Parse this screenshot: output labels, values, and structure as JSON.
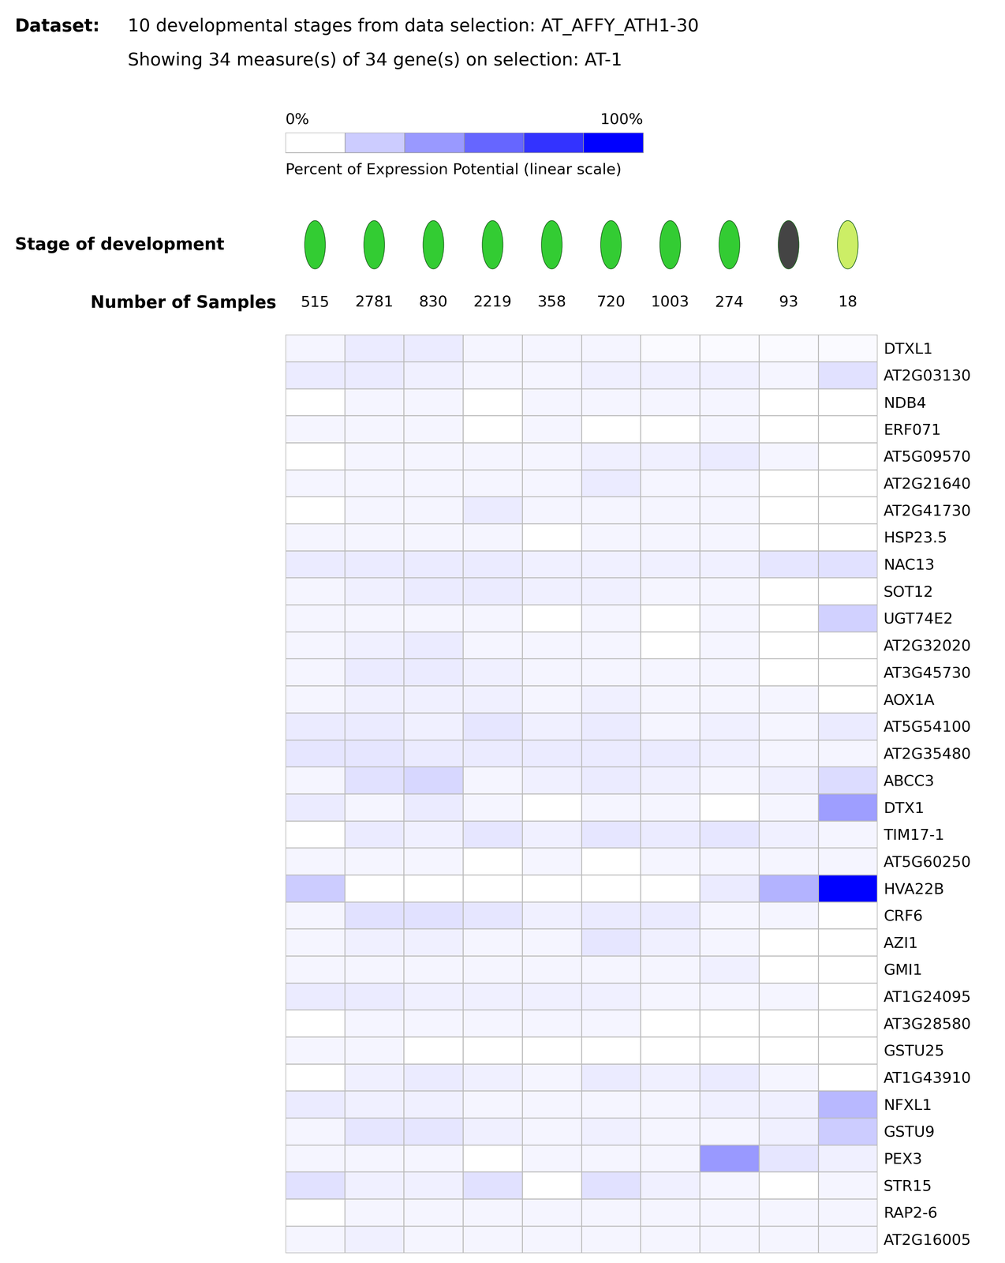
{
  "chart_data": {
    "type": "heatmap",
    "title_bold": "Dataset:",
    "title": "10 developmental stages from data selection: AT_AFFY_ATH1-30",
    "subtitle": "Showing 34 measure(s) of 34 gene(s) on selection: AT-1",
    "stage_label": "Stage of development",
    "samples_label": "Number of Samples",
    "samples": [
      515,
      2781,
      830,
      2219,
      358,
      720,
      1003,
      274,
      93,
      18
    ],
    "color": "#0000ff",
    "colorbar": {
      "range": [
        0,
        100
      ],
      "ticks": [
        {
          "value": 0,
          "label": "0%"
        },
        {
          "value": 100,
          "label": "100%"
        }
      ],
      "label": "Percent of Expression Potential (linear scale)"
    },
    "rows": [
      "DTXL1",
      "AT2G03130",
      "NDB4",
      "ERF071",
      "AT5G09570",
      "AT2G21640",
      "AT2G41730",
      "HSP23.5",
      "NAC13",
      "SOT12",
      "UGT74E2",
      "AT2G32020",
      "AT3G45730",
      "AOX1A",
      "AT5G54100",
      "AT2G35480",
      "ABCC3",
      "DTX1",
      "TIM17-1",
      "AT5G60250",
      "HVA22B",
      "CRF6",
      "AZI1",
      "GMI1",
      "AT1G24095",
      "AT3G28580",
      "GSTU25",
      "AT1G43910",
      "NFXL1",
      "GSTU9",
      "PEX3",
      "STR15",
      "RAP2-6",
      "AT2G16005"
    ],
    "cells": [
      [
        4,
        8,
        8,
        4,
        4,
        4,
        2,
        2,
        2,
        2
      ],
      [
        8,
        8,
        6,
        4,
        4,
        6,
        6,
        6,
        4,
        12
      ],
      [
        0,
        4,
        4,
        0,
        4,
        4,
        4,
        4,
        0,
        0
      ],
      [
        4,
        4,
        4,
        0,
        4,
        0,
        0,
        4,
        0,
        0
      ],
      [
        0,
        4,
        4,
        4,
        4,
        6,
        6,
        8,
        4,
        0
      ],
      [
        4,
        4,
        4,
        4,
        4,
        8,
        4,
        4,
        0,
        0
      ],
      [
        0,
        4,
        4,
        8,
        4,
        4,
        4,
        4,
        0,
        0
      ],
      [
        4,
        4,
        4,
        4,
        0,
        4,
        4,
        4,
        0,
        0
      ],
      [
        8,
        8,
        8,
        8,
        6,
        6,
        6,
        6,
        10,
        12
      ],
      [
        4,
        6,
        8,
        8,
        6,
        6,
        4,
        4,
        0,
        0
      ],
      [
        4,
        4,
        4,
        4,
        0,
        4,
        0,
        4,
        0,
        18
      ],
      [
        4,
        6,
        8,
        4,
        4,
        4,
        0,
        4,
        0,
        0
      ],
      [
        4,
        8,
        8,
        6,
        4,
        4,
        4,
        4,
        0,
        0
      ],
      [
        4,
        6,
        6,
        6,
        4,
        6,
        4,
        4,
        4,
        0
      ],
      [
        8,
        8,
        6,
        10,
        6,
        8,
        4,
        6,
        4,
        8
      ],
      [
        10,
        10,
        8,
        8,
        8,
        8,
        8,
        6,
        4,
        4
      ],
      [
        4,
        12,
        16,
        4,
        6,
        8,
        6,
        4,
        6,
        14
      ],
      [
        8,
        4,
        8,
        4,
        0,
        4,
        4,
        0,
        4,
        38
      ],
      [
        0,
        8,
        6,
        10,
        6,
        10,
        8,
        10,
        6,
        4
      ],
      [
        4,
        4,
        4,
        0,
        4,
        0,
        4,
        4,
        4,
        4
      ],
      [
        20,
        0,
        0,
        0,
        0,
        0,
        0,
        8,
        30,
        100
      ],
      [
        4,
        12,
        12,
        10,
        6,
        8,
        8,
        4,
        4,
        0
      ],
      [
        4,
        6,
        6,
        4,
        4,
        10,
        6,
        4,
        0,
        0
      ],
      [
        4,
        4,
        4,
        4,
        4,
        4,
        4,
        6,
        0,
        0
      ],
      [
        8,
        8,
        6,
        6,
        6,
        6,
        4,
        4,
        4,
        0
      ],
      [
        0,
        4,
        4,
        4,
        4,
        4,
        0,
        0,
        0,
        0
      ],
      [
        4,
        4,
        0,
        0,
        0,
        0,
        0,
        0,
        0,
        0
      ],
      [
        0,
        6,
        8,
        6,
        4,
        8,
        6,
        8,
        4,
        0
      ],
      [
        8,
        6,
        6,
        4,
        4,
        4,
        4,
        6,
        6,
        28
      ],
      [
        4,
        10,
        10,
        6,
        4,
        6,
        4,
        4,
        6,
        20
      ],
      [
        4,
        4,
        4,
        0,
        4,
        4,
        4,
        40,
        10,
        6
      ],
      [
        12,
        6,
        6,
        12,
        0,
        12,
        6,
        4,
        0,
        4
      ],
      [
        0,
        4,
        4,
        4,
        4,
        4,
        4,
        4,
        4,
        4
      ],
      [
        4,
        6,
        4,
        4,
        4,
        4,
        4,
        4,
        4,
        4
      ]
    ]
  }
}
